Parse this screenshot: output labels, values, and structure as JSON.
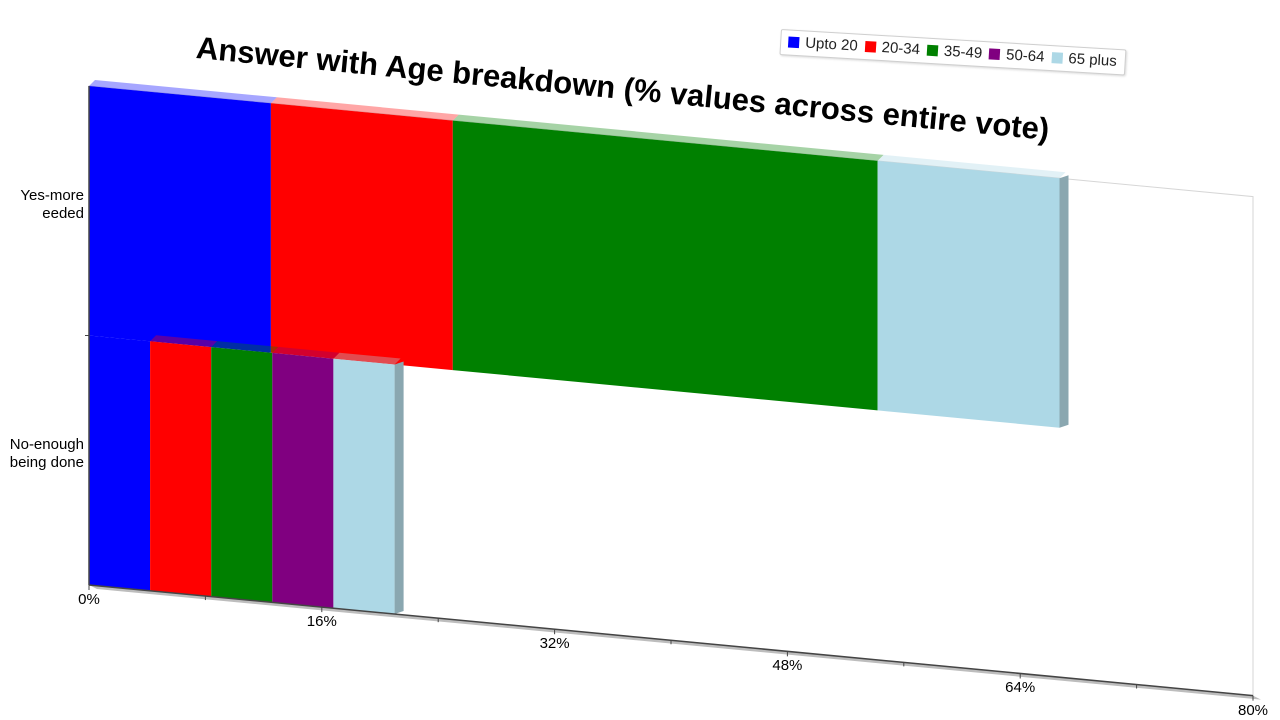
{
  "chart_data": {
    "type": "bar",
    "orientation": "horizontal",
    "stacked": true,
    "title": "Answer with Age breakdown (% values across entire vote)",
    "categories": [
      "Yes-more\needed",
      "No-enough\nbeing done"
    ],
    "series": [
      {
        "name": "Upto 20",
        "color": "#0000FF",
        "values": [
          12.5,
          4.2
        ]
      },
      {
        "name": "20-34",
        "color": "#FF0000",
        "values": [
          12.5,
          4.2
        ]
      },
      {
        "name": "35-49",
        "color": "#008000",
        "values": [
          29.2,
          4.2
        ]
      },
      {
        "name": "50-64",
        "color": "#800080",
        "values": [
          0,
          4.2
        ]
      },
      {
        "name": "65 plus",
        "color": "#ADD8E6",
        "values": [
          12.5,
          4.2
        ]
      }
    ],
    "x_ticks": [
      "0%",
      "16%",
      "32%",
      "48%",
      "64%",
      "80%"
    ],
    "xlim": [
      0,
      80
    ],
    "legend_position": "top-right",
    "grid": false
  }
}
